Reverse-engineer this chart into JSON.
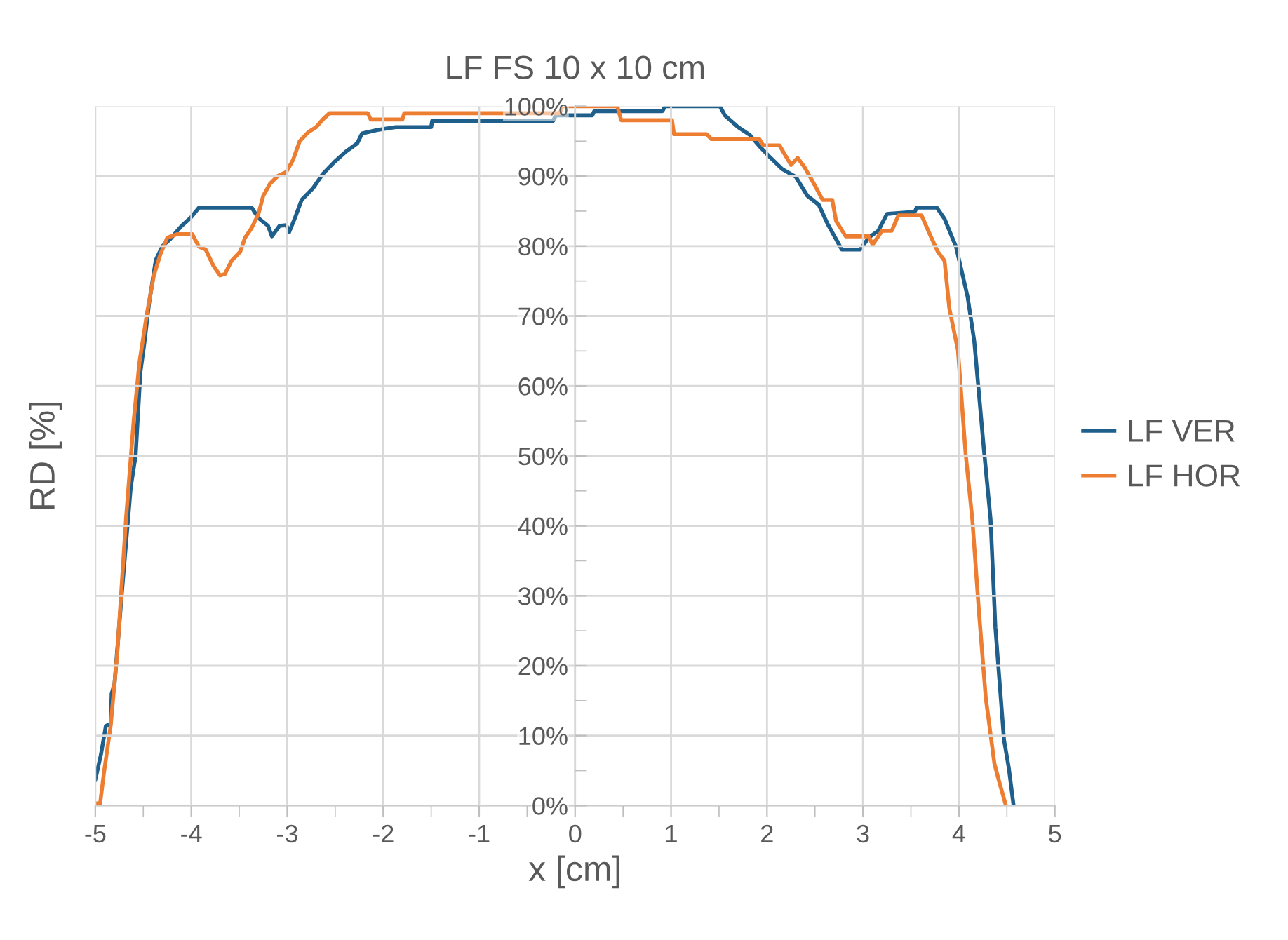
{
  "chart_data": {
    "type": "line",
    "title": "LF FS 10 x 10 cm",
    "xlabel": "x [cm]",
    "ylabel": "RD [%]",
    "xlim": [
      -5,
      5
    ],
    "xticks": [
      -5,
      -4,
      -3,
      -2,
      -1,
      0,
      1,
      2,
      3,
      4,
      5
    ],
    "ylim": [
      0,
      100
    ],
    "yticks": [
      {
        "value": 0,
        "label": "0%"
      },
      {
        "value": 10,
        "label": "10%"
      },
      {
        "value": 20,
        "label": "20%"
      },
      {
        "value": 30,
        "label": "30%"
      },
      {
        "value": 40,
        "label": "40%"
      },
      {
        "value": 50,
        "label": "50%"
      },
      {
        "value": 60,
        "label": "60%"
      },
      {
        "value": 70,
        "label": "70%"
      },
      {
        "value": 80,
        "label": "80%"
      },
      {
        "value": 90,
        "label": "90%"
      },
      {
        "value": 100,
        "label": "100%"
      }
    ],
    "grid": true,
    "legend": "right",
    "marker": "none",
    "line_style": "solid",
    "series": [
      {
        "name": "LF VER",
        "color": "#1f5f8b",
        "x": [
          -5,
          -4.94,
          -4.89,
          -4.84,
          -4.83,
          -4.8,
          -4.72,
          -4.63,
          -4.58,
          -4.53,
          -4.49,
          -4.44,
          -4.37,
          -4.3,
          -4.22,
          -4.1,
          -4.01,
          -3.92,
          -3.56,
          -3.37,
          -3.3,
          -3.2,
          -3.16,
          -3.08,
          -3.01,
          -2.98,
          -2.92,
          -2.85,
          -2.73,
          -2.63,
          -2.51,
          -2.39,
          -2.27,
          -2.22,
          -2.06,
          -1.87,
          -1.5,
          -1.49,
          -0.23,
          -0.2,
          0.18,
          0.2,
          0.91,
          0.94,
          1.51,
          1.56,
          1.7,
          1.82,
          1.92,
          2.01,
          2.16,
          2.3,
          2.42,
          2.54,
          2.63,
          2.78,
          2.97,
          3.06,
          3.16,
          3.25,
          3.54,
          3.56,
          3.77,
          3.85,
          3.97,
          4.09,
          4.16,
          4.26,
          4.33,
          4.38,
          4.47,
          4.52,
          4.57
        ],
        "values": [
          3.7,
          7.4,
          11.4,
          11.7,
          16,
          17.4,
          31,
          45.6,
          50,
          62,
          66,
          71.8,
          78,
          80,
          81,
          82.9,
          84,
          85.5,
          85.5,
          85.5,
          84,
          82.9,
          81.4,
          82.9,
          83,
          82,
          84,
          86.6,
          88.3,
          90.3,
          92,
          93.5,
          94.7,
          96.1,
          96.6,
          97,
          97,
          97.9,
          97.9,
          98.7,
          98.7,
          99.3,
          99.3,
          100,
          100,
          98.7,
          97,
          95.9,
          94.3,
          93,
          91,
          89.9,
          87.2,
          85.9,
          83.2,
          79.5,
          79.5,
          81.2,
          82.2,
          84.6,
          84.9,
          85.5,
          85.5,
          83.9,
          79.9,
          72.8,
          66.4,
          51,
          40.9,
          25.5,
          9.4,
          5.4,
          0
        ]
      },
      {
        "name": "LF HOR",
        "color": "#ed7d31",
        "x": [
          -5,
          -4.95,
          -4.91,
          -4.84,
          -4.77,
          -4.68,
          -4.6,
          -4.54,
          -4.46,
          -4.39,
          -4.32,
          -4.25,
          -4.15,
          -3.99,
          -3.92,
          -3.85,
          -3.77,
          -3.7,
          -3.65,
          -3.58,
          -3.49,
          -3.44,
          -3.37,
          -3.3,
          -3.25,
          -3.18,
          -3.1,
          -3.01,
          -2.94,
          -2.87,
          -2.78,
          -2.7,
          -2.63,
          -2.56,
          -2.16,
          -2.13,
          -1.8,
          -1.78,
          -0.16,
          -0.13,
          0.44,
          0.48,
          1.01,
          1.03,
          1.37,
          1.42,
          1.92,
          1.96,
          2.13,
          2.25,
          2.32,
          2.39,
          2.49,
          2.58,
          2.68,
          2.72,
          2.82,
          3.06,
          3.1,
          3.2,
          3.3,
          3.37,
          3.61,
          3.68,
          3.78,
          3.85,
          3.9,
          3.99,
          4.07,
          4.14,
          4.21,
          4.28,
          4.37,
          4.42,
          4.49
        ],
        "values": [
          0.3,
          0.3,
          4.7,
          11.4,
          22,
          41,
          55,
          63.4,
          70.5,
          75.8,
          78.9,
          81.2,
          81.7,
          81.7,
          79.9,
          79.5,
          77.2,
          75.8,
          76,
          77.9,
          79.2,
          81.2,
          82.6,
          84.6,
          87.2,
          88.9,
          90,
          90.6,
          92.3,
          95,
          96.3,
          97,
          98.1,
          99,
          99,
          98.1,
          98.1,
          99,
          99,
          100,
          100,
          98,
          98,
          96,
          96,
          95.3,
          95.3,
          94.4,
          94.4,
          91.6,
          92.6,
          91.3,
          88.9,
          86.6,
          86.6,
          83.6,
          81.4,
          81.4,
          80.2,
          82.2,
          82.2,
          84.4,
          84.4,
          82.2,
          79.2,
          77.9,
          71.1,
          65.1,
          50.3,
          40.9,
          27.5,
          15.4,
          6,
          3.4,
          0
        ]
      }
    ]
  }
}
